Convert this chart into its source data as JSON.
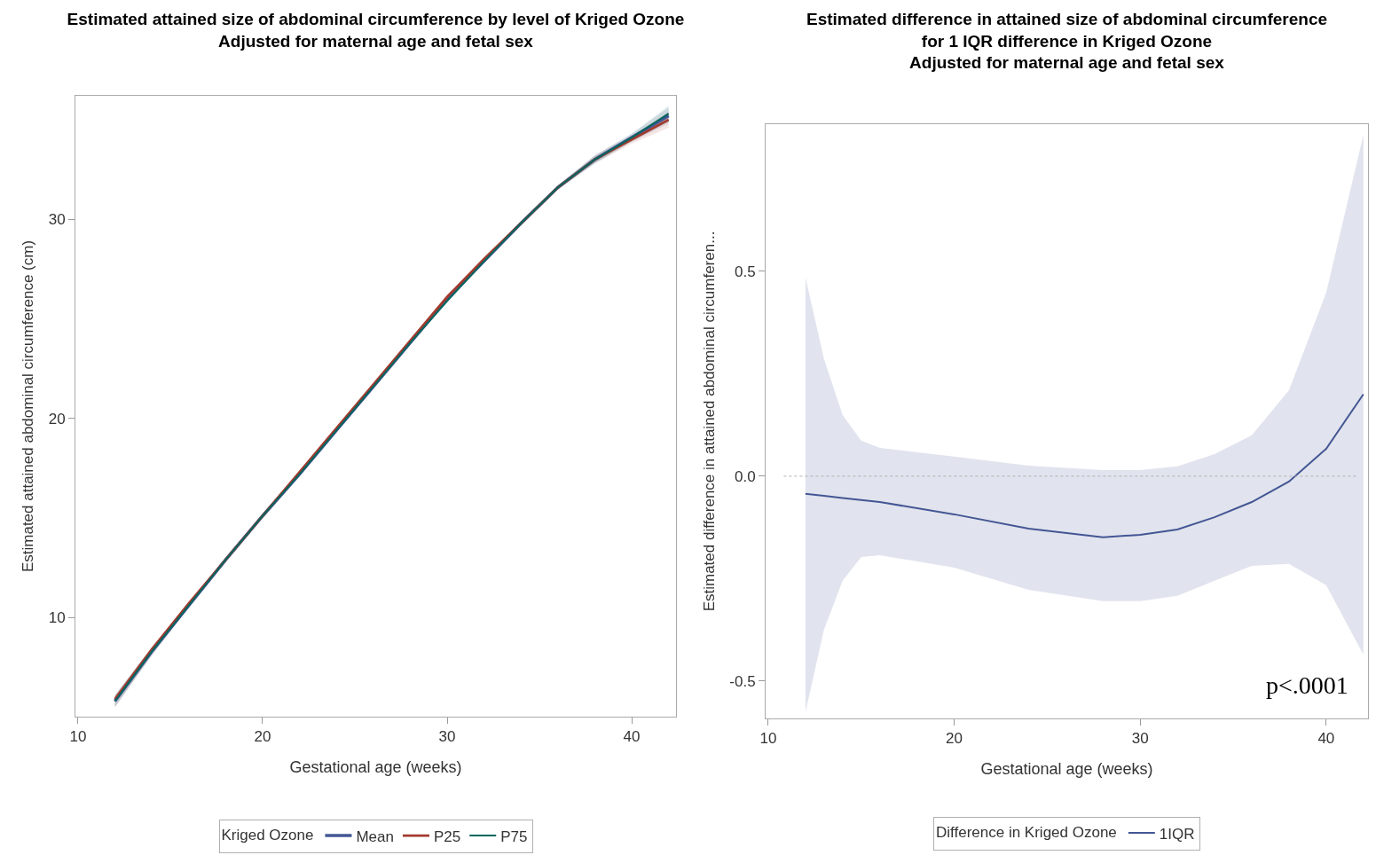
{
  "chart_data": [
    {
      "type": "line",
      "title": "Estimated attained size of abdominal circumference by level of Kriged Ozone",
      "subtitle": "Adjusted for maternal age and fetal sex",
      "xlabel": "Gestational age (weeks)",
      "ylabel": "Estimated attained abdominal circumference (cm)",
      "legend_title": "Kriged Ozone",
      "legend": "bottom",
      "grid": false,
      "line_style": "solid",
      "xlim": [
        9.86,
        42.4
      ],
      "xticks": [
        10,
        20,
        30,
        40
      ],
      "ylim": [
        5.02,
        36.2
      ],
      "yticks": [
        10,
        20,
        30
      ],
      "x": [
        12,
        14,
        16,
        18,
        20,
        22,
        24,
        26,
        28,
        30,
        32,
        34,
        36,
        38,
        40,
        42
      ],
      "series": [
        {
          "name": "Mean",
          "color": "#445694",
          "values": [
            5.8,
            8.3,
            10.6,
            12.9,
            15.1,
            17.2,
            19.4,
            21.6,
            23.8,
            26.0,
            27.9,
            29.8,
            31.6,
            33.0,
            34.1,
            35.2
          ],
          "lower": [
            5.5,
            8.1,
            10.5,
            12.8,
            15.0,
            17.1,
            19.3,
            21.5,
            23.7,
            25.9,
            27.8,
            29.7,
            31.5,
            32.8,
            33.9,
            34.8
          ],
          "upper": [
            6.1,
            8.5,
            10.7,
            13.0,
            15.2,
            17.3,
            19.5,
            21.7,
            23.9,
            26.1,
            28.0,
            29.9,
            31.7,
            33.2,
            34.3,
            35.6
          ]
        },
        {
          "name": "P25",
          "color": "#a23a2e",
          "values": [
            5.9,
            8.4,
            10.7,
            12.9,
            15.1,
            17.3,
            19.5,
            21.7,
            23.9,
            26.1,
            28.0,
            29.8,
            31.6,
            33.0,
            34.0,
            35.0
          ],
          "lower": [
            5.5,
            8.1,
            10.5,
            12.8,
            15.0,
            17.2,
            19.4,
            21.6,
            23.8,
            26.0,
            27.9,
            29.7,
            31.5,
            32.8,
            33.8,
            34.6
          ],
          "upper": [
            6.1,
            8.5,
            10.7,
            13.0,
            15.2,
            17.4,
            19.6,
            21.8,
            24.0,
            26.2,
            28.1,
            29.9,
            31.7,
            33.2,
            34.2,
            35.4
          ]
        },
        {
          "name": "P75",
          "color": "#01665e",
          "values": [
            5.8,
            8.3,
            10.6,
            12.9,
            15.1,
            17.2,
            19.4,
            21.6,
            23.8,
            25.9,
            27.9,
            29.8,
            31.6,
            33.0,
            34.1,
            35.3
          ],
          "lower": [
            5.5,
            8.1,
            10.5,
            12.8,
            15.0,
            17.1,
            19.3,
            21.5,
            23.7,
            25.8,
            27.8,
            29.7,
            31.5,
            32.8,
            33.9,
            34.9
          ],
          "upper": [
            6.1,
            8.5,
            10.7,
            13.0,
            15.2,
            17.3,
            19.5,
            21.7,
            23.9,
            26.0,
            28.0,
            29.9,
            31.7,
            33.2,
            34.3,
            35.7
          ]
        }
      ]
    },
    {
      "type": "line",
      "title": "Estimated difference in attained size of abdominal circumference",
      "subtitle": "for 1 IQR difference in Kriged Ozone\nAdjusted for maternal age and fetal sex",
      "xlabel": "Gestational age (weeks)",
      "ylabel": "Estimated difference in attained abdominal circumferen...",
      "legend_title": "Difference in Kriged Ozone",
      "legend": "bottom",
      "grid": false,
      "line_style": "solid",
      "xlim": [
        9.86,
        42.25
      ],
      "xticks": [
        10,
        20,
        30,
        40
      ],
      "ylim": [
        -0.591,
        0.859
      ],
      "yticks": [
        {
          "value": -0.5,
          "label": "-0.5"
        },
        {
          "value": 0,
          "label": "0.0"
        },
        0.5
      ],
      "ref_lines": [
        {
          "axis": "y",
          "value": 0,
          "color": "#b0b0b0",
          "line_style": "dotted"
        }
      ],
      "annotations": [
        "p<.0001"
      ],
      "x": [
        12,
        13,
        14,
        15,
        16,
        20,
        24,
        28,
        30,
        32,
        34,
        36,
        38,
        40,
        42
      ],
      "series": [
        {
          "name": "1IQR",
          "color": "#445694",
          "values": [
            -0.043,
            -0.048,
            -0.053,
            -0.058,
            -0.063,
            -0.093,
            -0.128,
            -0.149,
            -0.143,
            -0.13,
            -0.1,
            -0.063,
            -0.013,
            0.067,
            0.2
          ],
          "lower": [
            -0.576,
            -0.374,
            -0.255,
            -0.197,
            -0.193,
            -0.223,
            -0.277,
            -0.305,
            -0.305,
            -0.292,
            -0.255,
            -0.219,
            -0.214,
            -0.266,
            -0.435
          ],
          "upper": [
            0.485,
            0.286,
            0.149,
            0.087,
            0.069,
            0.048,
            0.026,
            0.015,
            0.015,
            0.024,
            0.054,
            0.1,
            0.21,
            0.448,
            0.833
          ]
        }
      ]
    }
  ]
}
